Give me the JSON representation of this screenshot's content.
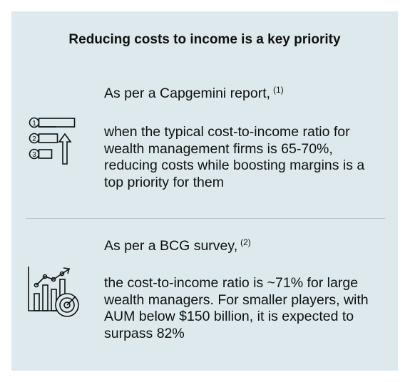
{
  "title": "Reducing costs to income is a key priority",
  "sections": [
    {
      "source": "As per a Capgemini report,",
      "footnote": "(1)",
      "body": [
        "when the typical cost-to-income ratio for",
        "wealth management firms is 65-70%,",
        "reducing costs while boosting margins is a",
        "top priority for them"
      ],
      "icon": "priority-list-icon",
      "icon_numbers": [
        "1",
        "2",
        "3"
      ]
    },
    {
      "source": "As per a BCG survey,",
      "footnote": "(2)",
      "body": [
        "the cost-to-income ratio is ~71% for large",
        "wealth managers. For smaller players, with",
        "AUM below $150 billion, it is expected to",
        "surpass 82%"
      ],
      "icon": "growth-chart-target-icon"
    }
  ]
}
